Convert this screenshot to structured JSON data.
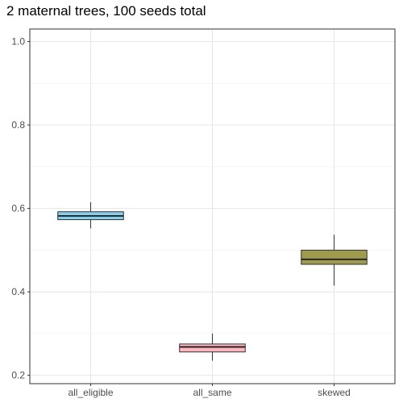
{
  "chart_data": {
    "type": "box",
    "title": "2 maternal trees, 100 seeds total",
    "xlabel": "",
    "ylabel": "",
    "categories": [
      "all_eligible",
      "all_same",
      "skewed"
    ],
    "ylim": [
      0.18,
      1.03
    ],
    "yticks": [
      0.2,
      0.4,
      0.6,
      0.8,
      1.0
    ],
    "ytick_labels": [
      "0.2",
      "0.4",
      "0.6",
      "0.8",
      "1.0"
    ],
    "grid": true,
    "boxes": [
      {
        "category": "all_eligible",
        "min": 0.552,
        "q1": 0.573,
        "median": 0.582,
        "q3": 0.592,
        "max": 0.615,
        "fill": "#87CEEB"
      },
      {
        "category": "all_same",
        "min": 0.235,
        "q1": 0.256,
        "median": 0.268,
        "q3": 0.275,
        "max": 0.3,
        "fill": "#FFB6C1"
      },
      {
        "category": "skewed",
        "min": 0.415,
        "q1": 0.466,
        "median": 0.478,
        "q3": 0.5,
        "max": 0.537,
        "fill": "#9E9A4E"
      }
    ]
  }
}
